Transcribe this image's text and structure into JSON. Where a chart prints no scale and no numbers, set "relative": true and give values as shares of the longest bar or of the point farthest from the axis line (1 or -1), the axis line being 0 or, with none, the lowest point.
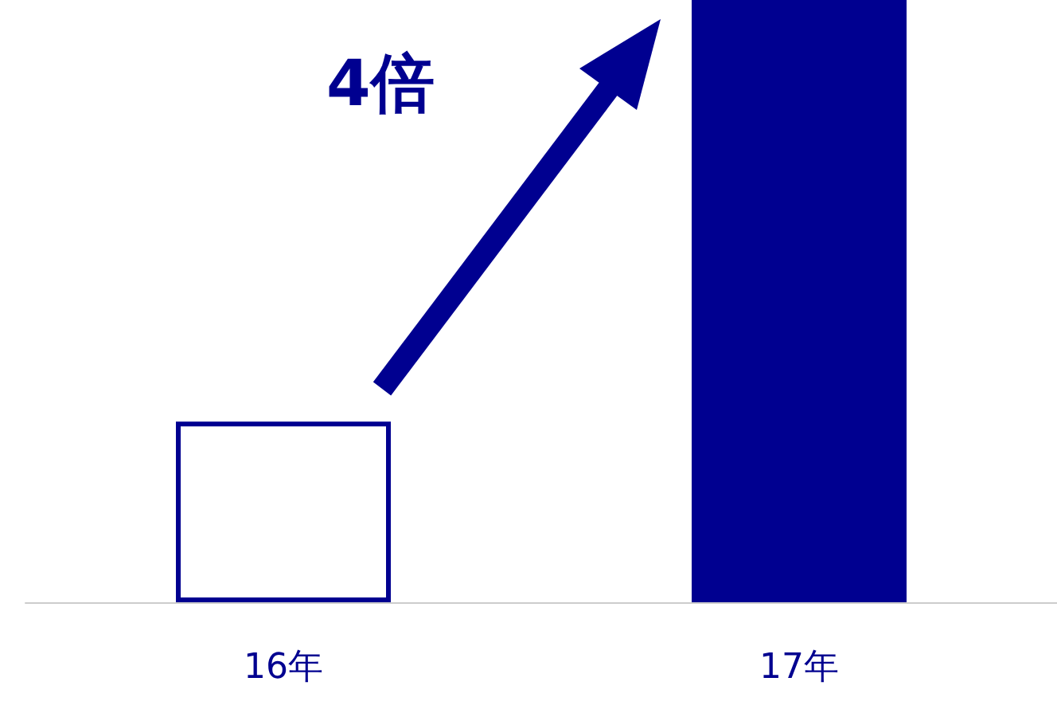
{
  "chart_data": {
    "type": "bar",
    "relative": true,
    "categories": [
      "16年",
      "17年"
    ],
    "values": [
      0.3,
      1
    ],
    "colors": [
      "#ffffff",
      "#000090"
    ],
    "color": "#000090",
    "annotations": [
      "4倍"
    ]
  }
}
